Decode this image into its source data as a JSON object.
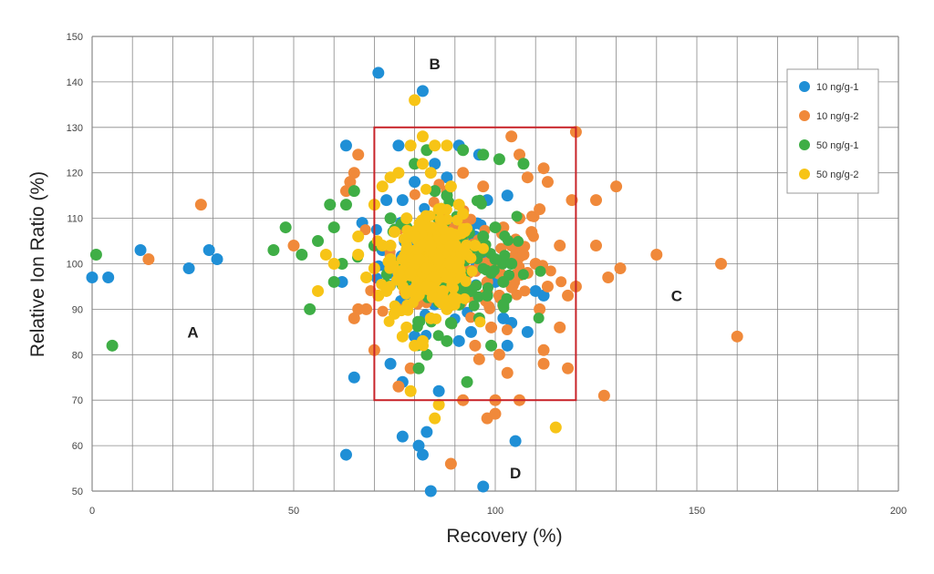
{
  "chart_data": {
    "type": "scatter",
    "xlabel": "Recovery (%)",
    "ylabel": "Relative Ion Ratio (%)",
    "xlim": [
      0,
      200
    ],
    "ylim": [
      50,
      150
    ],
    "x_ticks": [
      0,
      50,
      100,
      150,
      200
    ],
    "y_ticks": [
      50,
      60,
      70,
      80,
      90,
      100,
      110,
      120,
      130,
      140,
      150
    ],
    "grid": true,
    "legend_position": "top-right",
    "acceptance_box": {
      "x_range": [
        70,
        120
      ],
      "y_range": [
        70,
        130
      ],
      "color": "#c8242a"
    },
    "region_labels": [
      {
        "text": "A",
        "x": 25,
        "y": 85
      },
      {
        "text": "B",
        "x": 85,
        "y": 144
      },
      {
        "text": "C",
        "x": 145,
        "y": 93
      },
      {
        "text": "D",
        "x": 105,
        "y": 54
      }
    ],
    "cluster": {
      "center_x": 85,
      "center_y": 100,
      "note": "dense overlapping cloud of all four series centred near (85, 100)"
    },
    "series": [
      {
        "name": "10 ng/g-1",
        "color": "#1f8fd6",
        "points": [
          [
            0,
            97
          ],
          [
            4,
            97
          ],
          [
            12,
            103
          ],
          [
            24,
            99
          ],
          [
            29,
            103
          ],
          [
            31,
            101
          ],
          [
            63,
            126
          ],
          [
            71,
            142
          ],
          [
            82,
            138
          ],
          [
            76,
            126
          ],
          [
            73,
            114
          ],
          [
            77,
            114
          ],
          [
            80,
            118
          ],
          [
            85,
            122
          ],
          [
            91,
            126
          ],
          [
            96,
            124
          ],
          [
            98,
            114
          ],
          [
            103,
            115
          ],
          [
            100,
            96
          ],
          [
            102,
            88
          ],
          [
            104,
            87
          ],
          [
            110,
            94
          ],
          [
            112,
            93
          ],
          [
            108,
            85
          ],
          [
            103,
            82
          ],
          [
            91,
            83
          ],
          [
            94,
            85
          ],
          [
            80,
            84
          ],
          [
            74,
            78
          ],
          [
            77,
            74
          ],
          [
            65,
            75
          ],
          [
            86,
            72
          ],
          [
            83,
            63
          ],
          [
            77,
            62
          ],
          [
            81,
            60
          ],
          [
            82,
            58
          ],
          [
            63,
            58
          ],
          [
            84,
            50
          ],
          [
            97,
            51
          ],
          [
            105,
            61
          ],
          [
            72,
            103
          ],
          [
            90,
            108
          ],
          [
            95,
            106
          ],
          [
            67,
            109
          ],
          [
            88,
            119
          ],
          [
            62,
            96
          ]
        ]
      },
      {
        "name": "10 ng/g-2",
        "color": "#f0893a",
        "points": [
          [
            14,
            101
          ],
          [
            27,
            113
          ],
          [
            50,
            104
          ],
          [
            64,
            118
          ],
          [
            65,
            120
          ],
          [
            66,
            124
          ],
          [
            63,
            116
          ],
          [
            104,
            128
          ],
          [
            120,
            129
          ],
          [
            106,
            124
          ],
          [
            108,
            119
          ],
          [
            112,
            121
          ],
          [
            111,
            112
          ],
          [
            113,
            118
          ],
          [
            119,
            114
          ],
          [
            125,
            114
          ],
          [
            130,
            117
          ],
          [
            128,
            97
          ],
          [
            131,
            99
          ],
          [
            120,
            95
          ],
          [
            125,
            104
          ],
          [
            116,
            104
          ],
          [
            113,
            95
          ],
          [
            111,
            90
          ],
          [
            112,
            81
          ],
          [
            116,
            86
          ],
          [
            118,
            77
          ],
          [
            112,
            78
          ],
          [
            100,
            70
          ],
          [
            92,
            70
          ],
          [
            98,
            66
          ],
          [
            100,
            67
          ],
          [
            89,
            56
          ],
          [
            127,
            71
          ],
          [
            140,
            102
          ],
          [
            156,
            100
          ],
          [
            160,
            84
          ],
          [
            106,
            70
          ],
          [
            103,
            76
          ],
          [
            101,
            80
          ],
          [
            96,
            79
          ],
          [
            101,
            93
          ],
          [
            99,
            86
          ],
          [
            104,
            104
          ],
          [
            107,
            102
          ],
          [
            109,
            107
          ],
          [
            106,
            110
          ],
          [
            104,
            96
          ],
          [
            66,
            90
          ],
          [
            65,
            88
          ],
          [
            70,
            81
          ],
          [
            68,
            90
          ],
          [
            76,
            73
          ],
          [
            79,
            77
          ],
          [
            95,
            82
          ],
          [
            97,
            100
          ],
          [
            98,
            96
          ],
          [
            110,
            100
          ],
          [
            108,
            98
          ],
          [
            102,
            108
          ],
          [
            118,
            93
          ],
          [
            97,
            117
          ],
          [
            88,
            116
          ],
          [
            86,
            110
          ],
          [
            92,
            120
          ]
        ]
      },
      {
        "name": "50 ng/g-1",
        "color": "#3fae46",
        "points": [
          [
            1,
            102
          ],
          [
            5,
            82
          ],
          [
            45,
            103
          ],
          [
            48,
            108
          ],
          [
            52,
            102
          ],
          [
            54,
            90
          ],
          [
            56,
            105
          ],
          [
            59,
            113
          ],
          [
            60,
            108
          ],
          [
            63,
            113
          ],
          [
            65,
            116
          ],
          [
            60,
            96
          ],
          [
            62,
            100
          ],
          [
            70,
            104
          ],
          [
            74,
            110
          ],
          [
            78,
            108
          ],
          [
            85,
            103
          ],
          [
            90,
            100
          ],
          [
            95,
            104
          ],
          [
            100,
            101
          ],
          [
            97,
            106
          ],
          [
            99,
            98
          ],
          [
            102,
            96
          ],
          [
            94,
            94
          ],
          [
            91,
            91
          ],
          [
            89,
            87
          ],
          [
            83,
            80
          ],
          [
            81,
            77
          ],
          [
            88,
            83
          ],
          [
            93,
            74
          ],
          [
            99,
            82
          ],
          [
            96,
            88
          ],
          [
            104,
            100
          ],
          [
            100,
            108
          ],
          [
            85,
            116
          ],
          [
            88,
            115
          ],
          [
            80,
            122
          ],
          [
            83,
            125
          ],
          [
            92,
            125
          ],
          [
            97,
            124
          ],
          [
            101,
            123
          ],
          [
            107,
            122
          ],
          [
            87,
            97
          ],
          [
            84,
            93
          ],
          [
            75,
            100
          ],
          [
            77,
            97
          ],
          [
            102,
            91
          ],
          [
            98,
            93
          ]
        ]
      },
      {
        "name": "50 ng/g-2",
        "color": "#f7c416",
        "points": [
          [
            56,
            94
          ],
          [
            58,
            102
          ],
          [
            60,
            100
          ],
          [
            66,
            106
          ],
          [
            70,
            113
          ],
          [
            72,
            117
          ],
          [
            74,
            119
          ],
          [
            76,
            120
          ],
          [
            79,
            126
          ],
          [
            82,
            128
          ],
          [
            85,
            126
          ],
          [
            88,
            126
          ],
          [
            80,
            136
          ],
          [
            82,
            122
          ],
          [
            84,
            120
          ],
          [
            89,
            117
          ],
          [
            91,
            113
          ],
          [
            92,
            111
          ],
          [
            78,
            86
          ],
          [
            75,
            89
          ],
          [
            73,
            94
          ],
          [
            77,
            84
          ],
          [
            80,
            82
          ],
          [
            82,
            83
          ],
          [
            84,
            88
          ],
          [
            88,
            90
          ],
          [
            90,
            92
          ],
          [
            86,
            69
          ],
          [
            85,
            66
          ],
          [
            79,
            72
          ],
          [
            115,
            64
          ],
          [
            95,
            104
          ],
          [
            74,
            101
          ],
          [
            76,
            98
          ],
          [
            78,
            103
          ],
          [
            80,
            100
          ],
          [
            82,
            98
          ],
          [
            84,
            104
          ],
          [
            86,
            101
          ],
          [
            88,
            97
          ],
          [
            80,
            106
          ],
          [
            70,
            99
          ],
          [
            72,
            104
          ],
          [
            68,
            97
          ],
          [
            83,
            95
          ],
          [
            87,
            94
          ],
          [
            79,
            94
          ],
          [
            89,
            104
          ],
          [
            91,
            99
          ],
          [
            93,
            102
          ],
          [
            78,
            110
          ],
          [
            84,
            108
          ],
          [
            86,
            112
          ],
          [
            75,
            107
          ],
          [
            71,
            93
          ],
          [
            74,
            104
          ],
          [
            66,
            102
          ],
          [
            81,
            101
          ],
          [
            83,
            99
          ],
          [
            77,
            101
          ],
          [
            79,
            98
          ]
        ]
      }
    ]
  }
}
